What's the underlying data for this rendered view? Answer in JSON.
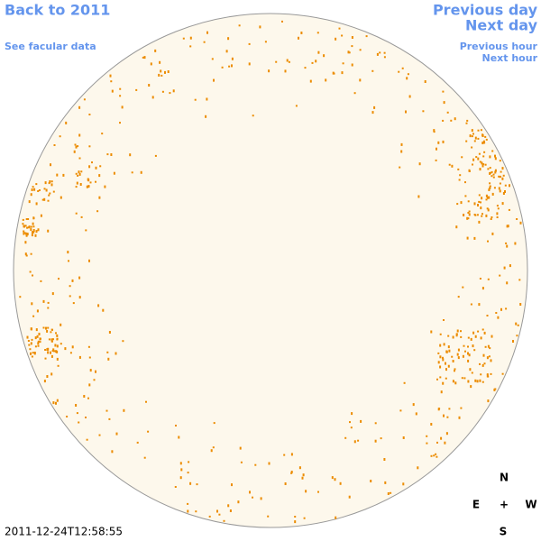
{
  "nav": {
    "back": "Back to 2011",
    "facular": "See facular data",
    "previous_day": "Previous day",
    "next_day": "Next day",
    "previous_hour": "Previous hour",
    "next_hour": "Next hour"
  },
  "compass": {
    "north": "N",
    "east": "E",
    "center": "+",
    "west": "W",
    "south": "S"
  },
  "timestamp": "2011-12-24T12:58:55"
}
